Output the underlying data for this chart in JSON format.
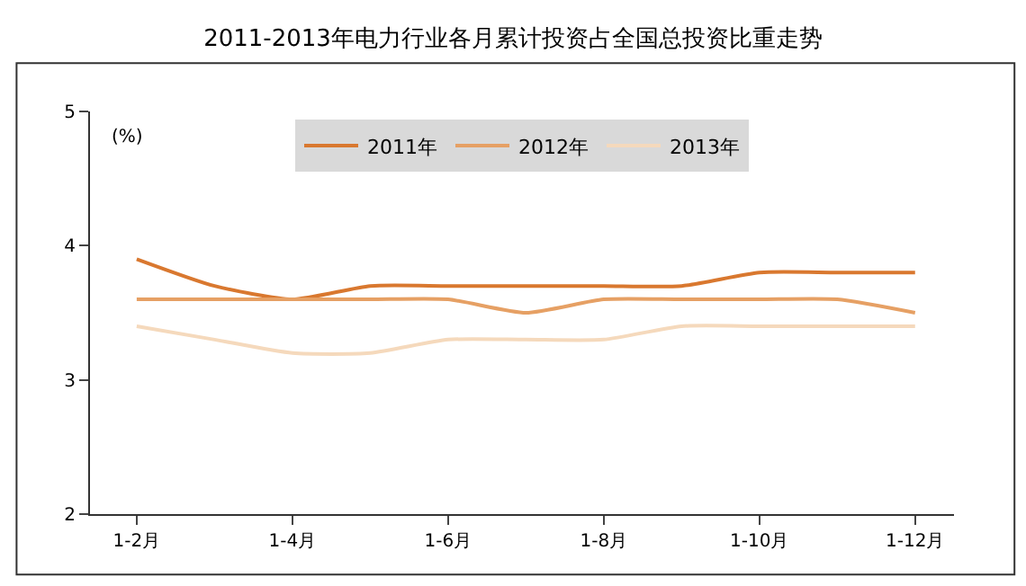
{
  "chart_data": {
    "type": "line",
    "title": "2011-2013年电力行业各月累计投资占全国总投资比重走势",
    "annotations": [
      "(%)"
    ],
    "categories": [
      "1-2月",
      null,
      "1-4月",
      null,
      "1-6月",
      null,
      "1-8月",
      null,
      "1-10月",
      null,
      "1-12月"
    ],
    "series": [
      {
        "name": "2011年",
        "color": "#d9782f",
        "values": [
          3.9,
          3.7,
          3.6,
          3.7,
          3.7,
          3.7,
          3.7,
          3.7,
          3.8,
          3.8,
          3.8
        ]
      },
      {
        "name": "2012年",
        "color": "#e6a064",
        "values": [
          3.6,
          3.6,
          3.6,
          3.6,
          3.6,
          3.5,
          3.6,
          3.6,
          3.6,
          3.6,
          3.5
        ]
      },
      {
        "name": "2013年",
        "color": "#f5d9bc",
        "values": [
          3.4,
          3.3,
          3.2,
          3.2,
          3.3,
          3.3,
          3.3,
          3.4,
          3.4,
          3.4,
          3.4
        ]
      }
    ],
    "ylim": [
      2,
      5
    ],
    "yticks": [
      2,
      3,
      4,
      5
    ],
    "legend": "top",
    "marker": "none",
    "line_style": "solid"
  }
}
